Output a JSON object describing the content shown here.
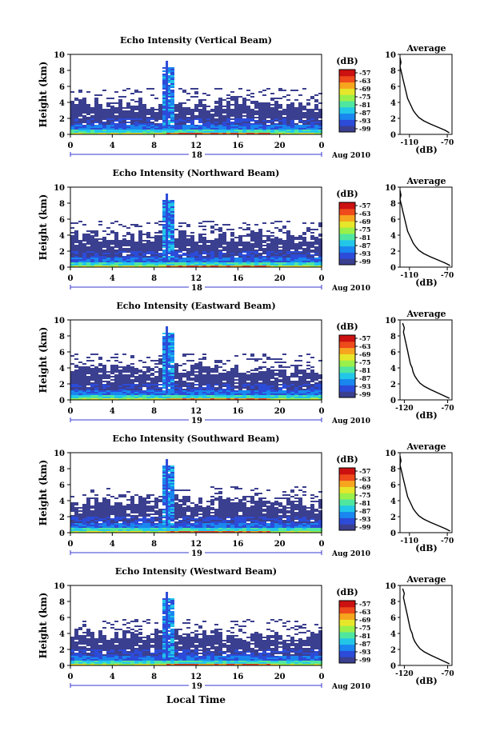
{
  "colors": {
    "scale": [
      "#3b3f8f",
      "#2c4bd8",
      "#1a86ef",
      "#22c7e8",
      "#4fe6a0",
      "#9af04a",
      "#e6e62a",
      "#f7a51e",
      "#ee4a1b",
      "#cc1111"
    ]
  },
  "colorbar": {
    "unit": "(dB)",
    "ticks": [
      "-57",
      "-63",
      "-69",
      "-75",
      "-81",
      "-87",
      "-93",
      "-99"
    ]
  },
  "xlabel": "Local Time",
  "chart_data": [
    {
      "type": "heatmap",
      "title": "Echo Intensity (Vertical Beam)",
      "ylabel": "Height (km)",
      "xticks": [
        "0",
        "4",
        "8",
        "12",
        "16",
        "20",
        "0"
      ],
      "yticks": [
        "0",
        "2",
        "4",
        "6",
        "8",
        "10"
      ],
      "xlim": [
        0,
        24
      ],
      "ylim": [
        0,
        10
      ],
      "date_label": "18",
      "month_label": "Aug 2010",
      "profile": {
        "title": "Average",
        "xlabel": "(dB)",
        "xticks": [
          "-110",
          "-70"
        ],
        "xlim": [
          -120,
          -65
        ],
        "ylim": [
          0,
          10
        ],
        "x": [
          -68,
          -72,
          -80,
          -88,
          -95,
          -100,
          -103,
          -106,
          -108,
          -110,
          -112,
          -113,
          -114,
          -115,
          -116,
          -117,
          -118,
          -119,
          -120,
          -119,
          -120
        ],
        "y": [
          0.2,
          0.5,
          0.9,
          1.3,
          1.7,
          2.1,
          2.5,
          3.0,
          3.5,
          4.0,
          4.5,
          5.0,
          5.5,
          6.0,
          6.5,
          7.0,
          7.5,
          8.0,
          8.5,
          9.0,
          9.6
        ]
      }
    },
    {
      "type": "heatmap",
      "title": "Echo Intensity (Northward Beam)",
      "ylabel": "Height (km)",
      "xticks": [
        "0",
        "4",
        "8",
        "12",
        "16",
        "20",
        "0"
      ],
      "yticks": [
        "0",
        "2",
        "4",
        "6",
        "8",
        "10"
      ],
      "xlim": [
        0,
        24
      ],
      "ylim": [
        0,
        10
      ],
      "date_label": "18",
      "month_label": "Aug 2010",
      "profile": {
        "title": "Average",
        "xlabel": "(dB)",
        "xticks": [
          "-110",
          "-70"
        ],
        "xlim": [
          -120,
          -65
        ],
        "ylim": [
          0,
          10
        ],
        "x": [
          -67,
          -72,
          -80,
          -88,
          -95,
          -100,
          -103,
          -106,
          -108,
          -110,
          -112,
          -113,
          -114,
          -115,
          -116,
          -117,
          -118,
          -119,
          -120,
          -119,
          -120
        ],
        "y": [
          0.2,
          0.5,
          0.9,
          1.3,
          1.7,
          2.1,
          2.5,
          3.0,
          3.5,
          4.0,
          4.5,
          5.0,
          5.5,
          6.0,
          6.5,
          7.0,
          7.5,
          8.0,
          8.5,
          9.0,
          9.6
        ]
      }
    },
    {
      "type": "heatmap",
      "title": "Echo Intensity (Eastward Beam)",
      "ylabel": "Height (km)",
      "xticks": [
        "0",
        "4",
        "8",
        "12",
        "16",
        "20",
        "0"
      ],
      "yticks": [
        "0",
        "2",
        "4",
        "6",
        "8",
        "10"
      ],
      "xlim": [
        0,
        24
      ],
      "ylim": [
        0,
        10
      ],
      "date_label": "19",
      "month_label": "Aug 2010",
      "profile": {
        "title": "Average",
        "xlabel": "(dB)",
        "xticks": [
          "-120",
          "-70"
        ],
        "xlim": [
          -125,
          -65
        ],
        "ylim": [
          0,
          10
        ],
        "x": [
          -68,
          -74,
          -82,
          -90,
          -97,
          -102,
          -105,
          -108,
          -110,
          -111,
          -113,
          -114,
          -115,
          -116,
          -117,
          -118,
          -119,
          -120,
          -121,
          -120,
          -122
        ],
        "y": [
          0.2,
          0.5,
          0.9,
          1.3,
          1.7,
          2.1,
          2.5,
          3.0,
          3.5,
          4.0,
          4.5,
          5.0,
          5.5,
          6.0,
          6.5,
          7.0,
          7.5,
          8.0,
          8.5,
          9.0,
          9.6
        ]
      }
    },
    {
      "type": "heatmap",
      "title": "Echo Intensity (Southward Beam)",
      "ylabel": "Height (km)",
      "xticks": [
        "0",
        "4",
        "8",
        "12",
        "16",
        "20",
        "0"
      ],
      "yticks": [
        "0",
        "2",
        "4",
        "6",
        "8",
        "10"
      ],
      "xlim": [
        0,
        24
      ],
      "ylim": [
        0,
        10
      ],
      "date_label": "19",
      "month_label": "Aug 2010",
      "profile": {
        "title": "Average",
        "xlabel": "(dB)",
        "xticks": [
          "-110",
          "-70"
        ],
        "xlim": [
          -120,
          -65
        ],
        "ylim": [
          0,
          10
        ],
        "x": [
          -67,
          -72,
          -80,
          -88,
          -95,
          -100,
          -103,
          -106,
          -108,
          -110,
          -112,
          -113,
          -114,
          -115,
          -116,
          -117,
          -118,
          -119,
          -120,
          -119,
          -120
        ],
        "y": [
          0.2,
          0.5,
          0.9,
          1.3,
          1.7,
          2.1,
          2.5,
          3.0,
          3.5,
          4.0,
          4.5,
          5.0,
          5.5,
          6.0,
          6.5,
          7.0,
          7.5,
          8.0,
          8.5,
          9.0,
          9.6
        ]
      }
    },
    {
      "type": "heatmap",
      "title": "Echo Intensity (Westward Beam)",
      "ylabel": "Height (km)",
      "xticks": [
        "0",
        "4",
        "8",
        "12",
        "16",
        "20",
        "0"
      ],
      "yticks": [
        "0",
        "2",
        "4",
        "6",
        "8",
        "10"
      ],
      "xlim": [
        0,
        24
      ],
      "ylim": [
        0,
        10
      ],
      "date_label": "19",
      "month_label": "Aug 2010",
      "profile": {
        "title": "Average",
        "xlabel": "(dB)",
        "xticks": [
          "-120",
          "-70"
        ],
        "xlim": [
          -125,
          -65
        ],
        "ylim": [
          0,
          10
        ],
        "x": [
          -68,
          -74,
          -82,
          -90,
          -97,
          -102,
          -105,
          -108,
          -110,
          -111,
          -113,
          -114,
          -115,
          -116,
          -117,
          -118,
          -119,
          -120,
          -121,
          -120,
          -122
        ],
        "y": [
          0.2,
          0.5,
          0.9,
          1.3,
          1.7,
          2.1,
          2.5,
          3.0,
          3.5,
          4.0,
          4.5,
          5.0,
          5.5,
          6.0,
          6.5,
          7.0,
          7.5,
          8.0,
          8.5,
          9.0,
          9.6
        ]
      }
    }
  ]
}
